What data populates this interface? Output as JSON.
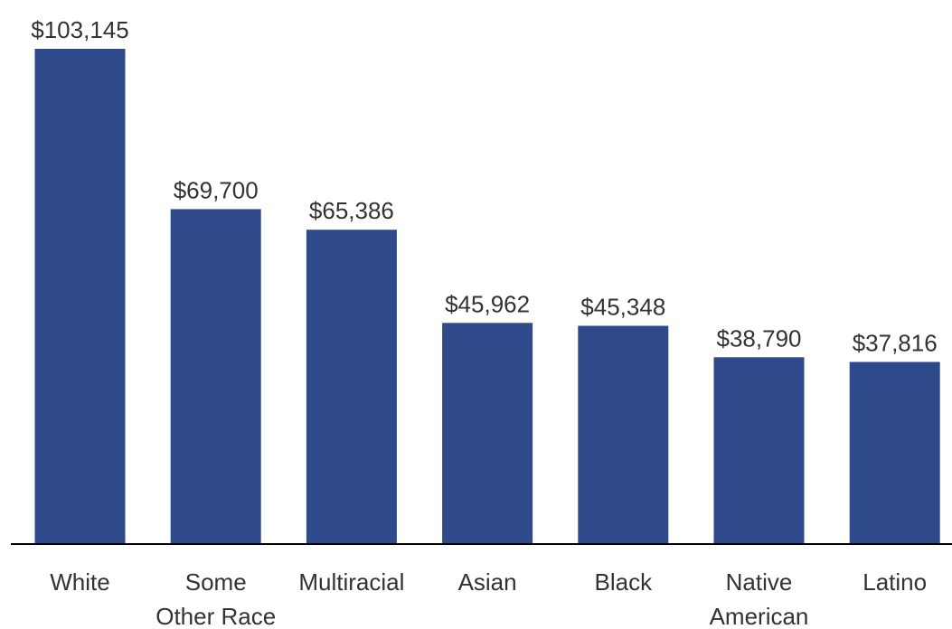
{
  "chart_data": {
    "type": "bar",
    "title": "",
    "xlabel": "",
    "ylabel": "",
    "categories": [
      [
        "White"
      ],
      [
        "Some",
        "Other Race"
      ],
      [
        "Multiracial"
      ],
      [
        "Asian"
      ],
      [
        "Black"
      ],
      [
        "Native",
        "American"
      ],
      [
        "Latino"
      ]
    ],
    "values": [
      103145,
      69700,
      65386,
      45962,
      45348,
      38790,
      37816
    ],
    "value_labels": [
      "$103,145",
      "$69,700",
      "$65,386",
      "$45,962",
      "$45,348",
      "$38,790",
      "$37,816"
    ],
    "ylim": [
      0,
      103145
    ],
    "grid": false,
    "legend": "none",
    "bar_color": "#2E4A8B",
    "axis_color": "#000000",
    "text_color": "#333333"
  }
}
